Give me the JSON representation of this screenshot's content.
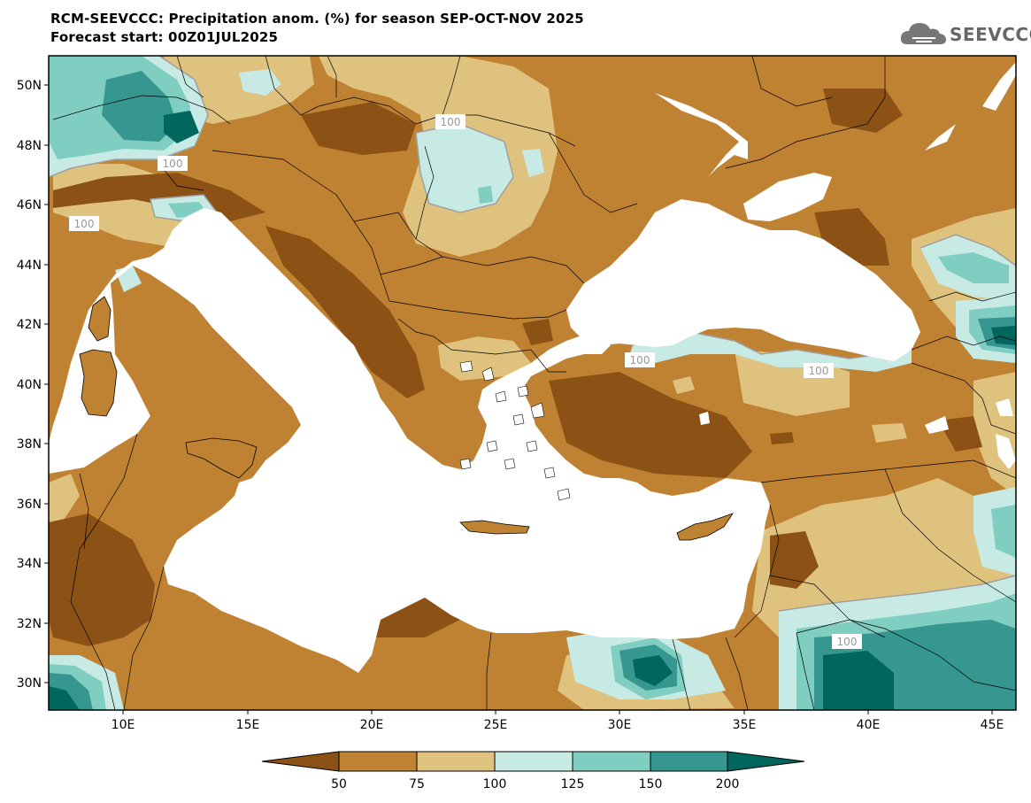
{
  "header": {
    "title": "RCM-SEEVCCC: Precipitation anom. (%) for season SEP-OCT-NOV 2025",
    "forecast": "Forecast start: 00Z01JUL2025"
  },
  "logo": {
    "text": "SEEVCCC",
    "icon": "cloud-icon"
  },
  "map": {
    "lat_labels": [
      "50N",
      "48N",
      "46N",
      "44N",
      "42N",
      "40N",
      "38N",
      "36N",
      "34N",
      "32N",
      "30N"
    ],
    "lon_labels": [
      "10E",
      "15E",
      "20E",
      "25E",
      "30E",
      "35E",
      "40E",
      "45E"
    ],
    "contour_label": "100"
  },
  "colorbar": {
    "ticks": [
      "50",
      "75",
      "100",
      "125",
      "150",
      "200"
    ],
    "colors": {
      "lt50": "#8c5215",
      "50_75": "#bf8232",
      "75_100": "#dfc27e",
      "100_125": "#c8eae5",
      "125_150": "#80cdc1",
      "150_200": "#35978f",
      "gt200": "#01665e"
    }
  }
}
